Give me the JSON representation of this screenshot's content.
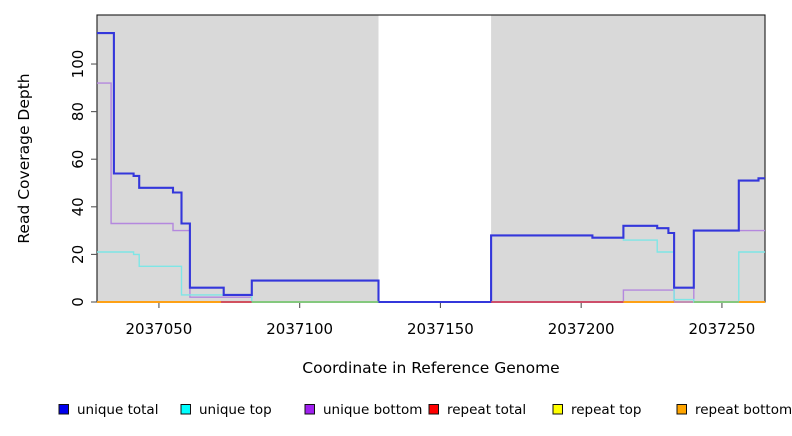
{
  "chart_data": {
    "type": "line",
    "subtype": "step",
    "title": "",
    "xlabel": "Coordinate in Reference Genome",
    "ylabel": "Read Coverage Depth",
    "x_domain": [
      2037028,
      2037265.3
    ],
    "y_domain": [
      0,
      120.6
    ],
    "x_ticks": [
      2037050,
      2037100,
      2037150,
      2037200,
      2037250
    ],
    "y_ticks": [
      0,
      20,
      40,
      60,
      80,
      100
    ],
    "grid": false,
    "plot_bg_color": "#d9d9d9",
    "gap_region": {
      "from": 2037128,
      "to": 2037168,
      "color": "#ffffff"
    },
    "legend_position": "bottom",
    "series": [
      {
        "name": "unique total",
        "swatch_color": "#0000ee",
        "stroke_color": "#3437db",
        "stroke_width": 2.1,
        "points": [
          [
            2037028,
            113
          ],
          [
            2037034,
            54
          ],
          [
            2037041,
            53
          ],
          [
            2037043,
            48
          ],
          [
            2037055,
            46
          ],
          [
            2037058,
            33
          ],
          [
            2037061,
            6
          ],
          [
            2037073,
            3
          ],
          [
            2037083,
            9
          ],
          [
            2037128,
            0
          ],
          [
            2037168,
            28
          ],
          [
            2037204,
            27
          ],
          [
            2037215,
            32
          ],
          [
            2037227,
            31
          ],
          [
            2037231,
            29
          ],
          [
            2037233,
            6
          ],
          [
            2037240,
            30
          ],
          [
            2037256,
            51
          ],
          [
            2037263,
            52
          ]
        ]
      },
      {
        "name": "unique top",
        "swatch_color": "#00ffff",
        "stroke_color": "#7ee6e6",
        "stroke_width": 1.4,
        "points": [
          [
            2037028,
            21
          ],
          [
            2037041,
            20
          ],
          [
            2037043,
            15
          ],
          [
            2037058,
            3
          ],
          [
            2037083,
            0
          ],
          [
            2037168,
            28
          ],
          [
            2037204,
            27
          ],
          [
            2037215,
            26
          ],
          [
            2037227,
            21
          ],
          [
            2037233,
            1
          ],
          [
            2037240,
            0
          ],
          [
            2037256,
            21
          ]
        ]
      },
      {
        "name": "unique bottom",
        "swatch_color": "#a020f0",
        "stroke_color": "#b488de",
        "stroke_width": 1.4,
        "points": [
          [
            2037028,
            92
          ],
          [
            2037033,
            33
          ],
          [
            2037055,
            30
          ],
          [
            2037061,
            2
          ],
          [
            2037083,
            9
          ],
          [
            2037128,
            0
          ],
          [
            2037215,
            5
          ],
          [
            2037233,
            0
          ],
          [
            2037240,
            30
          ]
        ]
      },
      {
        "name": "repeat total",
        "swatch_color": "#ff0000",
        "stroke_color": "#cc4466",
        "stroke_width": 1.2,
        "points": [
          [
            2037028,
            0
          ]
        ]
      },
      {
        "name": "repeat top",
        "swatch_color": "#ffff00",
        "stroke_color": "#e8e800",
        "stroke_width": 1.2,
        "points": [
          [
            2037028,
            0
          ]
        ]
      },
      {
        "name": "repeat bottom",
        "swatch_color": "#ffa500",
        "stroke_color": "#ffa013",
        "stroke_width": 1.8,
        "points": [
          [
            2037028,
            0
          ]
        ]
      }
    ],
    "draw_order": [
      3,
      4,
      5,
      2,
      1,
      0
    ],
    "baseline_segments": [
      {
        "from": 2037028,
        "to": 2037072,
        "color": "#ffa013"
      },
      {
        "from": 2037072,
        "to": 2037083,
        "color": "#cc4466"
      },
      {
        "from": 2037083,
        "to": 2037128,
        "color": "#7cc87c"
      },
      {
        "from": 2037168,
        "to": 2037215,
        "color": "#cc4466"
      },
      {
        "from": 2037215,
        "to": 2037233,
        "color": "#ffa013"
      },
      {
        "from": 2037240,
        "to": 2037256,
        "color": "#7cc87c"
      },
      {
        "from": 2037256,
        "to": 2037265.3,
        "color": "#ffa013"
      }
    ]
  }
}
